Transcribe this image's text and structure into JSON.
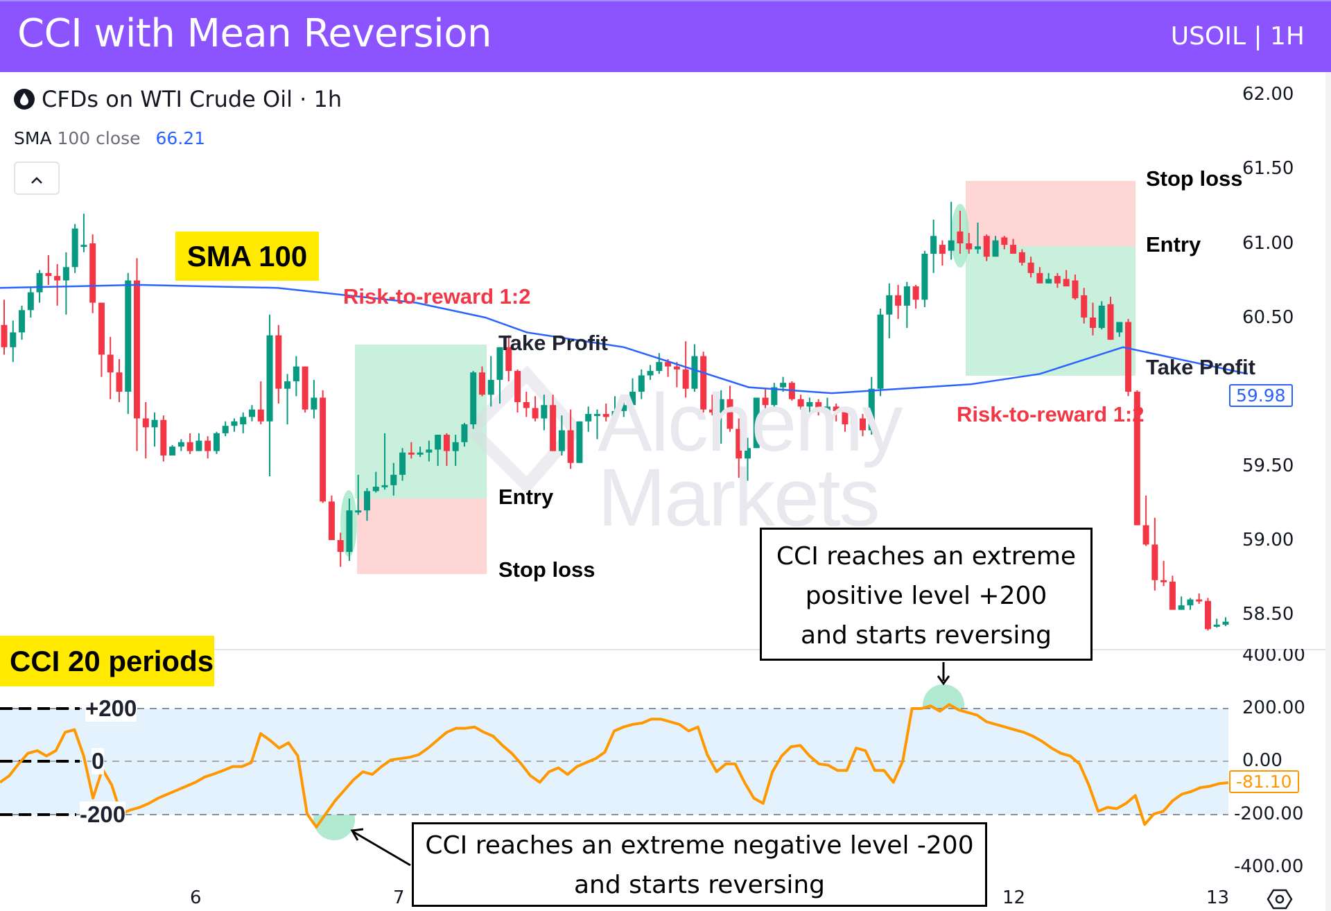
{
  "header": {
    "title": "CCI with Mean Reversion",
    "symbol": "USOIL | 1H",
    "background": "#8c54fe"
  },
  "legend": {
    "instrument": "CFDs on WTI Crude Oil · 1h",
    "icon": "oil-drop-icon",
    "sma_label": "SMA",
    "sma_params": "100 close",
    "sma_value": "66.21",
    "collapse_icon": "chevron-up-icon",
    "collapse_glyph": "^"
  },
  "price_axis": {
    "labels": [
      "62.00",
      "61.50",
      "61.00",
      "60.50",
      "59.50",
      "59.00",
      "58.50"
    ],
    "current_sma_tag": "59.98"
  },
  "cci_axis": {
    "labels": [
      "400.00",
      "200.00",
      "0.00",
      "-200.00",
      "-400.00"
    ],
    "current_cci_tag": "-81.10"
  },
  "time_axis": {
    "labels": [
      "6",
      "7",
      "12",
      "13"
    ],
    "settings_icon": "settings-hexagon-icon"
  },
  "tags": {
    "sma": "SMA 100",
    "cci": "CCI 20 periods"
  },
  "cci_levels": {
    "upper": "+200",
    "zero": "0",
    "lower": "-200"
  },
  "trade_long": {
    "ratio": "Risk-to-reward 1:2",
    "take_profit": "Take Profit",
    "entry": "Entry",
    "stop_loss": "Stop loss"
  },
  "trade_short": {
    "ratio": "Risk-to-reward 1:2",
    "take_profit": "Take Profit",
    "entry": "Entry",
    "stop_loss": "Stop loss"
  },
  "callouts": {
    "positive": [
      "CCI reaches an extreme",
      "positive level +200",
      "and starts reversing"
    ],
    "negative": [
      "CCI reaches an extreme negative level -200",
      "and starts reversing"
    ]
  },
  "watermark": [
    "Alchemy",
    "Markets"
  ],
  "colors": {
    "up": "#089981",
    "down": "#f23645",
    "sma": "#2962ff",
    "cci": "#ff9800",
    "cci_band": "#e3f2fd",
    "profit_zone": "#c8f0dc",
    "loss_zone": "#ffd6d6",
    "highlight": "#9ee5c5"
  },
  "chart_data": [
    {
      "type": "candlestick",
      "title": "CFDs on WTI Crude Oil · 1h",
      "ylabel": "Price",
      "ylim": [
        58.4,
        62.1
      ],
      "x_ticks": [
        "6",
        "7",
        "12",
        "13"
      ],
      "ohlc": [
        [
          60.45,
          60.62,
          60.25,
          60.3
        ],
        [
          60.3,
          60.48,
          60.2,
          60.4
        ],
        [
          60.4,
          60.58,
          60.35,
          60.55
        ],
        [
          60.55,
          60.7,
          60.5,
          60.67
        ],
        [
          60.67,
          60.82,
          60.6,
          60.8
        ],
        [
          60.8,
          60.92,
          60.72,
          60.78
        ],
        [
          60.78,
          60.86,
          60.58,
          60.75
        ],
        [
          60.75,
          60.94,
          60.52,
          60.84
        ],
        [
          60.84,
          61.13,
          60.8,
          61.1
        ],
        [
          60.98,
          61.2,
          60.94,
          60.99
        ],
        [
          61.0,
          61.06,
          60.53,
          60.6
        ],
        [
          60.6,
          60.6,
          60.1,
          60.25
        ],
        [
          60.25,
          60.37,
          59.95,
          60.13
        ],
        [
          60.13,
          60.22,
          59.93,
          60.0
        ],
        [
          60.0,
          60.8,
          59.85,
          60.75
        ],
        [
          60.75,
          60.9,
          59.6,
          59.82
        ],
        [
          59.82,
          59.93,
          59.55,
          59.76
        ],
        [
          59.76,
          59.86,
          59.63,
          59.81
        ],
        [
          59.81,
          59.84,
          59.53,
          59.57
        ],
        [
          59.57,
          59.64,
          59.58,
          59.63
        ],
        [
          59.63,
          59.68,
          59.6,
          59.66
        ],
        [
          59.66,
          59.72,
          59.58,
          59.6
        ],
        [
          59.6,
          59.72,
          59.6,
          59.67
        ],
        [
          59.67,
          59.7,
          59.55,
          59.6
        ],
        [
          59.6,
          59.73,
          59.58,
          59.72
        ],
        [
          59.72,
          59.8,
          59.7,
          59.77
        ],
        [
          59.77,
          59.82,
          59.73,
          59.8
        ],
        [
          59.78,
          59.86,
          59.72,
          59.83
        ],
        [
          59.83,
          59.91,
          59.8,
          59.88
        ],
        [
          59.88,
          60.07,
          59.78,
          59.8
        ],
        [
          59.8,
          60.52,
          59.43,
          60.38
        ],
        [
          60.38,
          60.45,
          59.92,
          60.02
        ],
        [
          60.02,
          60.12,
          59.78,
          60.07
        ],
        [
          60.07,
          60.24,
          59.97,
          60.17
        ],
        [
          60.17,
          60.17,
          59.86,
          59.88
        ],
        [
          59.88,
          60.08,
          59.82,
          59.96
        ],
        [
          59.96,
          60.01,
          59.25,
          59.26
        ],
        [
          59.26,
          59.3,
          59.0,
          59.0
        ],
        [
          59.0,
          59.05,
          58.82,
          58.92
        ],
        [
          58.92,
          59.28,
          58.86,
          59.2
        ],
        [
          59.2,
          59.44,
          59.17,
          59.2
        ],
        [
          59.2,
          59.35,
          59.13,
          59.33
        ],
        [
          59.33,
          59.46,
          59.32,
          59.36
        ],
        [
          59.36,
          59.72,
          59.34,
          59.37
        ],
        [
          59.37,
          59.52,
          59.3,
          59.44
        ],
        [
          59.44,
          59.62,
          59.4,
          59.59
        ],
        [
          59.59,
          59.66,
          59.55,
          59.58
        ],
        [
          59.58,
          59.63,
          59.56,
          59.59
        ],
        [
          59.59,
          59.67,
          59.53,
          59.61
        ],
        [
          59.61,
          59.7,
          59.5,
          59.71
        ],
        [
          59.71,
          59.72,
          59.5,
          59.6
        ],
        [
          59.6,
          59.71,
          59.5,
          59.66
        ],
        [
          59.66,
          59.79,
          59.63,
          59.78
        ],
        [
          59.78,
          60.14,
          59.75,
          60.13
        ],
        [
          60.13,
          60.17,
          59.97,
          59.98
        ],
        [
          59.98,
          60.24,
          59.9,
          60.08
        ],
        [
          60.08,
          60.3,
          59.92,
          60.3
        ],
        [
          60.3,
          60.38,
          60.07,
          60.14
        ],
        [
          60.14,
          60.15,
          59.86,
          59.93
        ],
        [
          59.93,
          60.0,
          59.83,
          59.89
        ],
        [
          59.89,
          59.97,
          59.8,
          59.82
        ],
        [
          59.82,
          59.98,
          59.74,
          59.91
        ],
        [
          59.91,
          59.98,
          59.62,
          59.6
        ],
        [
          59.6,
          59.84,
          59.57,
          59.74
        ],
        [
          59.74,
          59.88,
          59.48,
          59.52
        ],
        [
          59.52,
          59.8,
          59.56,
          59.8
        ],
        [
          59.8,
          59.9,
          59.73,
          59.85
        ],
        [
          59.85,
          59.88,
          59.68,
          59.85
        ],
        [
          59.85,
          59.92,
          59.8,
          59.83
        ],
        [
          59.83,
          59.97,
          59.78,
          59.87
        ],
        [
          59.87,
          59.96,
          59.83,
          59.91
        ],
        [
          59.91,
          60.09,
          59.88,
          60.0
        ],
        [
          60.0,
          60.15,
          59.95,
          60.11
        ],
        [
          60.11,
          60.18,
          60.08,
          60.14
        ],
        [
          60.14,
          60.26,
          60.12,
          60.2
        ],
        [
          60.2,
          60.22,
          60.1,
          60.17
        ],
        [
          60.17,
          60.2,
          60.03,
          60.15
        ],
        [
          60.15,
          60.34,
          59.96,
          60.02
        ],
        [
          60.02,
          60.32,
          60.0,
          60.24
        ],
        [
          60.24,
          60.27,
          59.86,
          59.88
        ],
        [
          59.88,
          59.98,
          59.84,
          59.86
        ],
        [
          59.86,
          60.01,
          59.65,
          59.95
        ],
        [
          59.95,
          60.04,
          59.73,
          59.75
        ],
        [
          59.75,
          59.82,
          59.42,
          59.55
        ],
        [
          59.55,
          59.69,
          59.4,
          59.62
        ],
        [
          59.62,
          59.96,
          59.62,
          59.96
        ],
        [
          59.96,
          60.02,
          59.85,
          59.91
        ],
        [
          59.91,
          60.06,
          59.89,
          60.03
        ],
        [
          60.03,
          60.1,
          60.0,
          60.06
        ],
        [
          60.06,
          60.07,
          59.94,
          59.95
        ],
        [
          59.95,
          59.98,
          59.88,
          59.9
        ],
        [
          59.9,
          59.96,
          59.85,
          59.93
        ],
        [
          59.93,
          59.95,
          59.84,
          59.87
        ],
        [
          59.87,
          59.96,
          59.85,
          59.9
        ],
        [
          59.9,
          59.92,
          59.8,
          59.87
        ],
        [
          59.87,
          59.9,
          59.73,
          59.78
        ],
        [
          59.78,
          59.83,
          59.7,
          59.82
        ],
        [
          59.82,
          59.85,
          59.7,
          59.74
        ],
        [
          59.74,
          60.1,
          59.71,
          60.02
        ],
        [
          60.02,
          60.56,
          59.97,
          60.52
        ],
        [
          60.52,
          60.73,
          60.36,
          60.65
        ],
        [
          60.65,
          60.72,
          60.49,
          60.58
        ],
        [
          60.58,
          60.74,
          60.43,
          60.71
        ],
        [
          60.71,
          60.72,
          60.56,
          60.62
        ],
        [
          60.62,
          60.95,
          60.57,
          60.93
        ],
        [
          60.93,
          61.16,
          60.8,
          61.05
        ],
        [
          60.99,
          61.02,
          60.85,
          60.93
        ],
        [
          60.95,
          61.28,
          60.89,
          61.02
        ],
        [
          61.08,
          61.22,
          60.93,
          61.0
        ],
        [
          61.0,
          61.07,
          60.93,
          60.96
        ],
        [
          60.96,
          61.14,
          60.93,
          60.98
        ],
        [
          61.05,
          61.06,
          60.88,
          60.91
        ],
        [
          60.91,
          61.05,
          60.91,
          61.02
        ],
        [
          61.04,
          61.05,
          60.96,
          60.99
        ],
        [
          60.99,
          61.03,
          60.95,
          60.93
        ],
        [
          60.94,
          60.96,
          60.85,
          60.87
        ],
        [
          60.87,
          60.91,
          60.77,
          60.8
        ],
        [
          60.8,
          60.84,
          60.73,
          60.73
        ],
        [
          60.73,
          60.8,
          60.73,
          60.76
        ],
        [
          60.78,
          60.8,
          60.7,
          60.73
        ],
        [
          60.76,
          60.82,
          60.73,
          60.71
        ],
        [
          60.75,
          60.79,
          60.62,
          60.63
        ],
        [
          60.65,
          60.7,
          60.46,
          60.5
        ],
        [
          60.5,
          60.6,
          60.38,
          60.43
        ],
        [
          60.43,
          60.61,
          60.42,
          60.58
        ],
        [
          60.59,
          60.64,
          60.37,
          60.35
        ],
        [
          60.4,
          60.47,
          60.37,
          60.47
        ],
        [
          60.47,
          60.49,
          59.97,
          60.0
        ],
        [
          60.0,
          60.01,
          59.1,
          59.1
        ],
        [
          59.1,
          59.3,
          58.96,
          58.97
        ],
        [
          58.97,
          59.15,
          58.66,
          58.73
        ],
        [
          58.73,
          58.86,
          58.69,
          58.72
        ],
        [
          58.72,
          58.76,
          58.53,
          58.53
        ],
        [
          58.53,
          58.62,
          58.55,
          58.56
        ],
        [
          58.56,
          58.61,
          58.53,
          58.6
        ],
        [
          58.6,
          58.64,
          58.57,
          58.59
        ],
        [
          58.59,
          58.61,
          58.39,
          58.4
        ],
        [
          58.42,
          58.47,
          58.41,
          58.43
        ],
        [
          58.43,
          58.48,
          58.42,
          58.45
        ]
      ],
      "sma_100": [
        [
          0,
          60.7
        ],
        [
          200,
          60.72
        ],
        [
          400,
          60.7
        ],
        [
          600,
          60.6
        ],
        [
          700,
          60.5
        ],
        [
          760,
          60.4
        ],
        [
          900,
          60.3
        ],
        [
          1000,
          60.15
        ],
        [
          1080,
          60.03
        ],
        [
          1200,
          59.99
        ],
        [
          1400,
          60.05
        ],
        [
          1500,
          60.12
        ],
        [
          1620,
          60.3
        ],
        [
          1720,
          60.2
        ],
        [
          1780,
          60.14
        ],
        [
          1800,
          60.12
        ]
      ]
    },
    {
      "type": "line",
      "title": "CCI 20 periods",
      "ylabel": "CCI",
      "ylim": [
        -400,
        400
      ],
      "levels": [
        200,
        0,
        -200
      ],
      "series": [
        {
          "name": "CCI (20)",
          "values": [
            -80,
            -55,
            -10,
            30,
            40,
            20,
            40,
            110,
            120,
            20,
            -140,
            -30,
            -90,
            -200,
            -185,
            -175,
            -160,
            -140,
            -125,
            -110,
            -95,
            -80,
            -60,
            -48,
            -35,
            -20,
            -20,
            -5,
            105,
            80,
            50,
            70,
            20,
            -200,
            -250,
            -200,
            -150,
            -110,
            -70,
            -40,
            -50,
            -20,
            5,
            10,
            15,
            25,
            50,
            80,
            110,
            125,
            125,
            130,
            110,
            95,
            60,
            30,
            -10,
            -55,
            -80,
            -40,
            -25,
            -50,
            -20,
            -5,
            10,
            35,
            115,
            130,
            140,
            145,
            160,
            160,
            150,
            140,
            115,
            130,
            25,
            -40,
            -10,
            -10,
            -80,
            -140,
            -160,
            -40,
            20,
            55,
            60,
            20,
            -10,
            -15,
            -35,
            -35,
            50,
            40,
            -35,
            -35,
            -80,
            0,
            200,
            200,
            210,
            190,
            215,
            195,
            185,
            175,
            150,
            140,
            130,
            120,
            110,
            95,
            75,
            50,
            30,
            20,
            -10,
            -90,
            -190,
            -175,
            -180,
            -160,
            -130,
            -240,
            -200,
            -190,
            -150,
            -125,
            -115,
            -100,
            -95,
            -85,
            -81.1
          ]
        }
      ],
      "annotations": [
        "CCI reaches an extreme positive level +200 and starts reversing",
        "CCI reaches an extreme negative level -200 and starts reversing"
      ]
    }
  ]
}
